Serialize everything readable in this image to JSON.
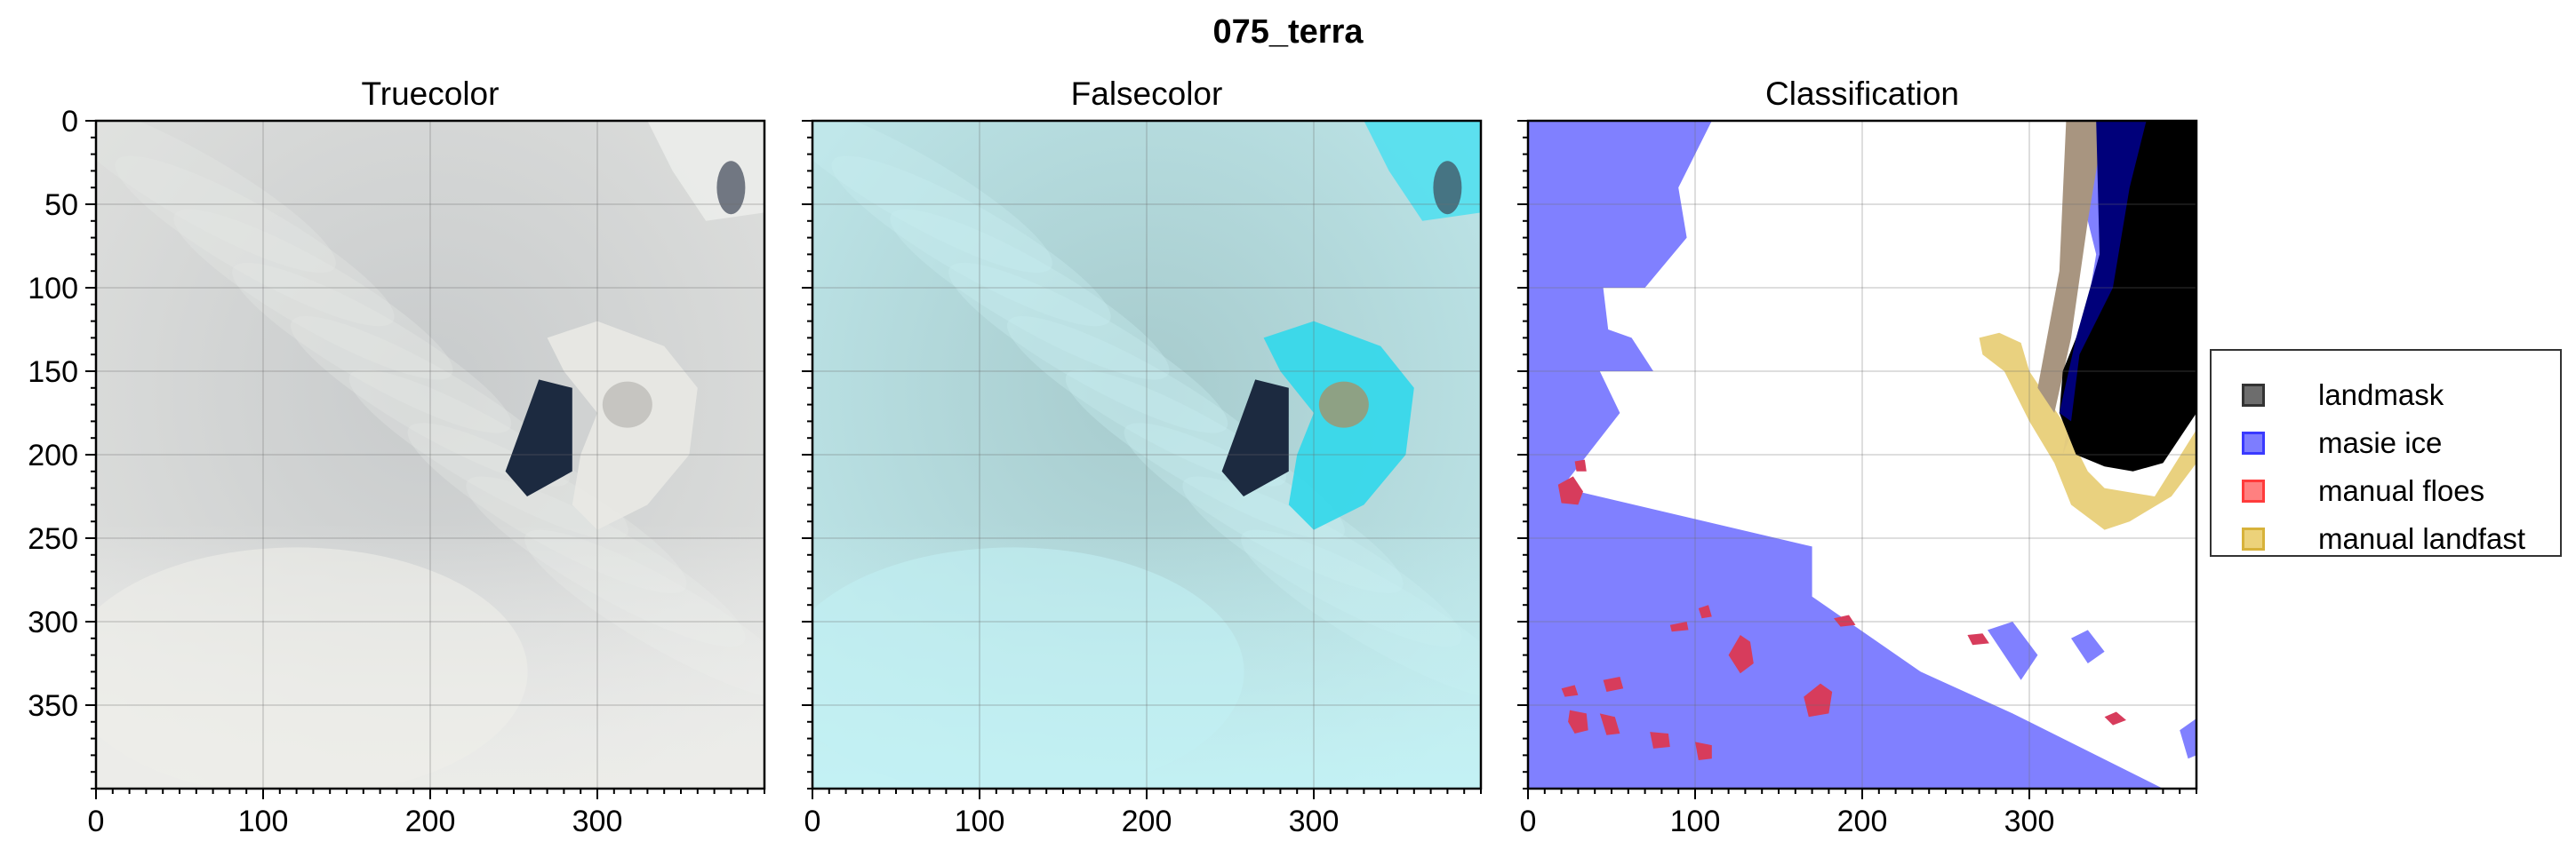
{
  "figure": {
    "suptitle": "075_terra"
  },
  "colors": {
    "ocean_class": "#8080ff",
    "landmask": "#000000",
    "masie_ice": "#0000ff",
    "manual_floes": "#ff0000",
    "manual_landfast": "#daa520",
    "truecolor_base": "#d4d6d5",
    "falsecolor_base": "#b5e0e2",
    "open_water_dark": "#1c2a40",
    "bright_ice_falsecolor": "#22d0e6"
  },
  "legend": {
    "items": [
      {
        "label": "landmask",
        "color": "#5a5a5a"
      },
      {
        "label": "masie ice",
        "color": "#4b4bff"
      },
      {
        "label": "manual floes",
        "color": "#ff6b6b"
      },
      {
        "label": "manual landfast",
        "color": "#e6c65a"
      }
    ]
  },
  "chart_data": [
    {
      "type": "heatmap",
      "title": "Truecolor",
      "xlim": [
        0,
        400
      ],
      "ylim": [
        400,
        0
      ],
      "xticks": [
        0,
        100,
        200,
        300
      ],
      "yticks": [
        0,
        50,
        100,
        150,
        200,
        250,
        300,
        350
      ],
      "grid": true,
      "image": "truecolor satellite image"
    },
    {
      "type": "heatmap",
      "title": "Falsecolor",
      "xlim": [
        0,
        400
      ],
      "ylim": [
        400,
        0
      ],
      "xticks": [
        0,
        100,
        200,
        300
      ],
      "yticks": [
        0,
        50,
        100,
        150,
        200,
        250,
        300,
        350
      ],
      "grid": true,
      "image": "falsecolor satellite image"
    },
    {
      "type": "heatmap",
      "title": "Classification",
      "xlim": [
        0,
        400
      ],
      "ylim": [
        400,
        0
      ],
      "xticks": [
        0,
        100,
        200,
        300
      ],
      "yticks": [
        0,
        50,
        100,
        150,
        200,
        250,
        300,
        350
      ],
      "grid": true,
      "classes": [
        "landmask",
        "masie ice",
        "manual floes",
        "manual landfast"
      ],
      "regions": {
        "masie_ice": [
          [
            0,
            0
          ],
          [
            110,
            0
          ],
          [
            90,
            40
          ],
          [
            95,
            70
          ],
          [
            70,
            100
          ],
          [
            45,
            100
          ],
          [
            48,
            125
          ],
          [
            62,
            130
          ],
          [
            75,
            150
          ],
          [
            43,
            150
          ],
          [
            55,
            175
          ],
          [
            20,
            220
          ],
          [
            0,
            220
          ]
        ],
        "masie_ice_lower": [
          [
            0,
            400
          ],
          [
            0,
            215
          ],
          [
            170,
            255
          ],
          [
            170,
            285
          ],
          [
            235,
            330
          ],
          [
            290,
            355
          ],
          [
            380,
            400
          ]
        ],
        "masie_ice_strip_east": [
          [
            335,
            10
          ],
          [
            355,
            40
          ],
          [
            360,
            100
          ],
          [
            345,
            140
          ],
          [
            330,
            160
          ],
          [
            345,
            140
          ],
          [
            340,
            90
          ],
          [
            330,
            40
          ]
        ],
        "manual_floes": [
          [
            [
              18,
              218
            ],
            [
              27,
              213
            ],
            [
              33,
              222
            ],
            [
              30,
              230
            ],
            [
              20,
              229
            ]
          ],
          [
            [
              28,
              204
            ],
            [
              34,
              203
            ],
            [
              35,
              210
            ],
            [
              29,
              210
            ]
          ],
          [
            [
              85,
              302
            ],
            [
              95,
              300
            ],
            [
              96,
              305
            ],
            [
              86,
              306
            ]
          ],
          [
            [
              102,
              292
            ],
            [
              108,
              290
            ],
            [
              110,
              297
            ],
            [
              104,
              298
            ]
          ],
          [
            [
              120,
              320
            ],
            [
              127,
              308
            ],
            [
              133,
              312
            ],
            [
              135,
              325
            ],
            [
              127,
              331
            ]
          ],
          [
            [
              183,
              298
            ],
            [
              192,
              296
            ],
            [
              196,
              302
            ],
            [
              187,
              303
            ]
          ],
          [
            [
              165,
              345
            ],
            [
              175,
              337
            ],
            [
              182,
              342
            ],
            [
              180,
              355
            ],
            [
              168,
              357
            ]
          ],
          [
            [
              45,
              335
            ],
            [
              55,
              333
            ],
            [
              57,
              340
            ],
            [
              47,
              342
            ]
          ],
          [
            [
              20,
              340
            ],
            [
              28,
              338
            ],
            [
              30,
              344
            ],
            [
              22,
              345
            ]
          ],
          [
            [
              25,
              353
            ],
            [
              35,
              355
            ],
            [
              36,
              365
            ],
            [
              28,
              367
            ],
            [
              24,
              360
            ]
          ],
          [
            [
              43,
              355
            ],
            [
              52,
              357
            ],
            [
              55,
              367
            ],
            [
              47,
              368
            ]
          ],
          [
            [
              73,
              366
            ],
            [
              84,
              367
            ],
            [
              85,
              375
            ],
            [
              75,
              376
            ]
          ],
          [
            [
              100,
              372
            ],
            [
              110,
              374
            ],
            [
              110,
              382
            ],
            [
              102,
              383
            ]
          ],
          [
            [
              263,
              308
            ],
            [
              272,
              307
            ],
            [
              276,
              313
            ],
            [
              266,
              314
            ]
          ],
          [
            [
              345,
              357
            ],
            [
              352,
              354
            ],
            [
              358,
              359
            ],
            [
              350,
              362
            ]
          ]
        ],
        "manual_landfast": [
          [
            270,
            130
          ],
          [
            282,
            127
          ],
          [
            295,
            133
          ],
          [
            300,
            150
          ],
          [
            320,
            180
          ],
          [
            335,
            210
          ],
          [
            345,
            220
          ],
          [
            375,
            225
          ],
          [
            400,
            185
          ],
          [
            400,
            205
          ],
          [
            385,
            225
          ],
          [
            360,
            240
          ],
          [
            345,
            245
          ],
          [
            325,
            230
          ],
          [
            315,
            205
          ],
          [
            300,
            180
          ],
          [
            285,
            150
          ],
          [
            272,
            140
          ]
        ],
        "landmask": [
          [
            400,
            0
          ],
          [
            400,
            175
          ],
          [
            380,
            205
          ],
          [
            362,
            210
          ],
          [
            345,
            207
          ],
          [
            328,
            200
          ],
          [
            318,
            175
          ],
          [
            320,
            150
          ],
          [
            330,
            125
          ],
          [
            345,
            100
          ],
          [
            355,
            60
          ],
          [
            363,
            20
          ],
          [
            370,
            0
          ]
        ],
        "sea_blue_east_strip": [
          [
            322,
            0
          ],
          [
            340,
            0
          ],
          [
            345,
            30
          ],
          [
            350,
            80
          ],
          [
            345,
            140
          ],
          [
            320,
            200
          ],
          [
            330,
            140
          ],
          [
            340,
            80
          ],
          [
            330,
            40
          ]
        ]
      },
      "water_blocks": [
        [
          [
            275,
            305
          ],
          [
            290,
            300
          ],
          [
            305,
            320
          ],
          [
            295,
            335
          ]
        ],
        [
          [
            325,
            310
          ],
          [
            335,
            305
          ],
          [
            345,
            318
          ],
          [
            335,
            325
          ]
        ],
        [
          [
            390,
            365
          ],
          [
            400,
            358
          ],
          [
            400,
            380
          ],
          [
            395,
            382
          ]
        ]
      ]
    }
  ]
}
